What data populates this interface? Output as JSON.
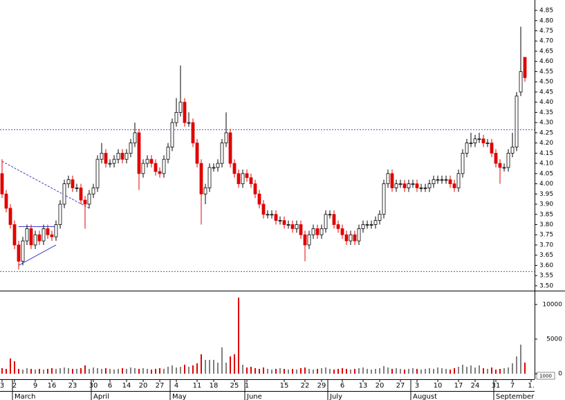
{
  "chart_data": {
    "type": "candlestick",
    "xlim": [
      -0.5,
      128.33
    ],
    "xticks": [
      {
        "value": 0,
        "label": "3"
      },
      {
        "value": 3,
        "label": "2"
      },
      {
        "value": 8,
        "label": "9"
      },
      {
        "value": 12,
        "label": "16"
      },
      {
        "value": 17,
        "label": "23"
      },
      {
        "value": 22,
        "label": "30"
      },
      {
        "value": 26,
        "label": "6"
      },
      {
        "value": 30,
        "label": "14"
      },
      {
        "value": 34,
        "label": "20"
      },
      {
        "value": 38,
        "label": "27"
      },
      {
        "value": 42,
        "label": "4"
      },
      {
        "value": 47,
        "label": "11"
      },
      {
        "value": 51,
        "label": "18"
      },
      {
        "value": 56,
        "label": "25"
      },
      {
        "value": 59,
        "label": "1"
      },
      {
        "value": 68,
        "label": "15"
      },
      {
        "value": 73,
        "label": "22"
      },
      {
        "value": 77,
        "label": "29"
      },
      {
        "value": 82,
        "label": "6"
      },
      {
        "value": 87,
        "label": "13"
      },
      {
        "value": 91,
        "label": "20"
      },
      {
        "value": 96,
        "label": "27"
      },
      {
        "value": 100,
        "label": "3"
      },
      {
        "value": 105,
        "label": "10"
      },
      {
        "value": 110,
        "label": "17"
      },
      {
        "value": 114,
        "label": "24"
      },
      {
        "value": 119,
        "label": "31"
      },
      {
        "value": 123,
        "label": "7"
      },
      {
        "value": 127.5,
        "label": "1."
      }
    ],
    "months": [
      {
        "value": 3,
        "label": "March"
      },
      {
        "value": 22,
        "label": "April"
      },
      {
        "value": 41,
        "label": "May"
      },
      {
        "value": 59,
        "label": "June"
      },
      {
        "value": 79,
        "label": "July"
      },
      {
        "value": 99,
        "label": "August"
      },
      {
        "value": 119,
        "label": "September"
      }
    ],
    "ylim": [
      3.476,
      4.901
    ],
    "yticks": [
      {
        "value": 3.5,
        "label": "3.50"
      },
      {
        "value": 3.55,
        "label": "3.55"
      },
      {
        "value": 3.6,
        "label": "3.60"
      },
      {
        "value": 3.65,
        "label": "3.65"
      },
      {
        "value": 3.7,
        "label": "3.70"
      },
      {
        "value": 3.75,
        "label": "3.75"
      },
      {
        "value": 3.8,
        "label": "3.80"
      },
      {
        "value": 3.85,
        "label": "3.85"
      },
      {
        "value": 3.9,
        "label": "3.90"
      },
      {
        "value": 3.95,
        "label": "3.95"
      },
      {
        "value": 4.0,
        "label": "4.00"
      },
      {
        "value": 4.05,
        "label": "4.05"
      },
      {
        "value": 4.1,
        "label": "4.10"
      },
      {
        "value": 4.15,
        "label": "4.15"
      },
      {
        "value": 4.2,
        "label": "4.20"
      },
      {
        "value": 4.25,
        "label": "4.25"
      },
      {
        "value": 4.3,
        "label": "4.30"
      },
      {
        "value": 4.35,
        "label": "4.35"
      },
      {
        "value": 4.4,
        "label": "4.40"
      },
      {
        "value": 4.45,
        "label": "4.45"
      },
      {
        "value": 4.5,
        "label": "4.50"
      },
      {
        "value": 4.55,
        "label": "4.55"
      },
      {
        "value": 4.6,
        "label": "4.60"
      },
      {
        "value": 4.65,
        "label": "4.65"
      },
      {
        "value": 4.7,
        "label": "4.70"
      },
      {
        "value": 4.75,
        "label": "4.75"
      },
      {
        "value": 4.8,
        "label": "4.80"
      },
      {
        "value": 4.85,
        "label": "4.85"
      }
    ],
    "volume_ylim": [
      -800,
      11900
    ],
    "volume_yticks": [
      0,
      5000,
      10000
    ],
    "volume_unit": "1000",
    "up_color": "#ffffff",
    "down_color": "#e00000",
    "up_volume_color": "#808080",
    "line_color": "#3a3acc",
    "hlines": [
      4.265,
      3.57
    ],
    "trendlines": [
      {
        "x": [
          0,
          21
        ],
        "y": [
          4.11,
          3.88
        ]
      },
      {
        "x": [
          4,
          13
        ],
        "y": [
          3.79,
          3.79
        ]
      },
      {
        "x": [
          4,
          13
        ],
        "y": [
          3.6,
          3.7
        ]
      }
    ],
    "open": [
      4.05,
      3.95,
      3.88,
      3.8,
      3.7,
      3.62,
      3.72,
      3.78,
      3.7,
      3.75,
      3.72,
      3.78,
      3.75,
      3.74,
      3.8,
      3.9,
      4.0,
      4.02,
      3.98,
      3.98,
      3.92,
      3.9,
      3.95,
      3.98,
      4.12,
      4.15,
      4.1,
      4.1,
      4.12,
      4.15,
      4.12,
      4.15,
      4.2,
      4.25,
      4.05,
      4.1,
      4.12,
      4.1,
      4.06,
      4.05,
      4.12,
      4.18,
      4.3,
      4.35,
      4.4,
      4.3,
      4.3,
      4.2,
      4.1,
      3.95,
      3.98,
      4.08,
      4.08,
      4.1,
      4.2,
      4.25,
      4.1,
      4.05,
      4.0,
      4.05,
      4.03,
      4.0,
      3.95,
      3.9,
      3.85,
      3.85,
      3.85,
      3.82,
      3.82,
      3.8,
      3.8,
      3.78,
      3.8,
      3.75,
      3.7,
      3.75,
      3.78,
      3.75,
      3.78,
      3.85,
      3.85,
      3.8,
      3.78,
      3.75,
      3.72,
      3.75,
      3.72,
      3.78,
      3.8,
      3.8,
      3.8,
      3.82,
      3.85,
      4.0,
      4.05,
      3.98,
      4.0,
      4.0,
      3.98,
      4.0,
      4.0,
      3.98,
      3.98,
      3.98,
      4.0,
      4.02,
      4.02,
      4.02,
      4.02,
      4.0,
      3.98,
      4.05,
      4.15,
      4.2,
      4.2,
      4.22,
      4.22,
      4.2,
      4.2,
      4.15,
      4.1,
      4.08,
      4.08,
      4.15,
      4.18,
      4.45,
      4.62
    ],
    "high": [
      4.12,
      3.97,
      3.9,
      3.82,
      3.72,
      3.74,
      3.8,
      3.8,
      3.77,
      3.77,
      3.8,
      3.8,
      3.77,
      3.82,
      3.92,
      4.02,
      4.04,
      4.04,
      4.0,
      4.0,
      3.94,
      3.97,
      4.0,
      4.14,
      4.2,
      4.17,
      4.12,
      4.14,
      4.17,
      4.17,
      4.17,
      4.22,
      4.3,
      4.27,
      4.12,
      4.14,
      4.14,
      4.12,
      4.08,
      4.14,
      4.2,
      4.32,
      4.42,
      4.58,
      4.42,
      4.35,
      4.32,
      4.22,
      4.12,
      4.0,
      4.1,
      4.1,
      4.12,
      4.22,
      4.35,
      4.27,
      4.12,
      4.07,
      4.07,
      4.07,
      4.05,
      4.02,
      3.97,
      3.92,
      3.87,
      3.87,
      3.87,
      3.84,
      3.84,
      3.82,
      3.82,
      3.82,
      3.82,
      3.77,
      3.77,
      3.8,
      3.8,
      3.8,
      3.87,
      3.87,
      3.87,
      3.82,
      3.8,
      3.77,
      3.77,
      3.77,
      3.8,
      3.82,
      3.82,
      3.82,
      3.84,
      3.87,
      4.02,
      4.07,
      4.07,
      4.02,
      4.02,
      4.02,
      4.02,
      4.02,
      4.02,
      4.0,
      4.0,
      4.02,
      4.04,
      4.04,
      4.04,
      4.04,
      4.04,
      4.02,
      4.07,
      4.17,
      4.22,
      4.25,
      4.24,
      4.25,
      4.24,
      4.22,
      4.22,
      4.17,
      4.12,
      4.1,
      4.17,
      4.25,
      4.45,
      4.77,
      4.62
    ],
    "low": [
      3.93,
      3.86,
      3.78,
      3.68,
      3.58,
      3.6,
      3.7,
      3.68,
      3.68,
      3.7,
      3.7,
      3.73,
      3.72,
      3.72,
      3.78,
      3.88,
      3.98,
      3.96,
      3.96,
      3.9,
      3.78,
      3.88,
      3.93,
      3.96,
      4.1,
      4.08,
      4.08,
      4.08,
      4.1,
      4.1,
      4.1,
      4.13,
      4.18,
      3.97,
      4.03,
      4.08,
      4.08,
      4.04,
      4.03,
      4.03,
      4.1,
      4.16,
      4.28,
      4.33,
      4.28,
      4.28,
      4.18,
      4.08,
      3.8,
      3.9,
      3.96,
      4.06,
      4.06,
      4.08,
      4.18,
      4.08,
      4.03,
      3.98,
      3.98,
      4.01,
      3.98,
      3.93,
      3.88,
      3.83,
      3.83,
      3.83,
      3.8,
      3.8,
      3.78,
      3.78,
      3.76,
      3.76,
      3.73,
      3.62,
      3.68,
      3.73,
      3.73,
      3.73,
      3.76,
      3.83,
      3.78,
      3.76,
      3.73,
      3.7,
      3.7,
      3.7,
      3.7,
      3.76,
      3.78,
      3.78,
      3.78,
      3.8,
      3.83,
      3.98,
      3.96,
      3.96,
      3.98,
      3.96,
      3.96,
      3.98,
      3.96,
      3.96,
      3.96,
      3.96,
      3.98,
      4.0,
      4.0,
      4.0,
      3.98,
      3.96,
      3.96,
      4.03,
      4.13,
      4.18,
      4.18,
      4.2,
      4.18,
      4.18,
      4.13,
      4.08,
      4.0,
      4.06,
      4.06,
      4.13,
      4.16,
      4.43,
      4.5
    ],
    "close": [
      3.95,
      3.88,
      3.8,
      3.7,
      3.62,
      3.72,
      3.78,
      3.7,
      3.75,
      3.72,
      3.78,
      3.75,
      3.74,
      3.8,
      3.9,
      4.0,
      4.02,
      3.98,
      3.98,
      3.92,
      3.9,
      3.95,
      3.98,
      4.12,
      4.15,
      4.1,
      4.1,
      4.12,
      4.15,
      4.12,
      4.15,
      4.2,
      4.25,
      4.05,
      4.1,
      4.12,
      4.1,
      4.06,
      4.05,
      4.12,
      4.18,
      4.3,
      4.35,
      4.4,
      4.3,
      4.3,
      4.2,
      4.1,
      3.95,
      3.98,
      4.08,
      4.08,
      4.1,
      4.2,
      4.25,
      4.1,
      4.05,
      4.0,
      4.05,
      4.03,
      4.0,
      3.95,
      3.9,
      3.85,
      3.85,
      3.85,
      3.82,
      3.82,
      3.8,
      3.8,
      3.78,
      3.8,
      3.75,
      3.7,
      3.75,
      3.78,
      3.75,
      3.78,
      3.85,
      3.85,
      3.8,
      3.78,
      3.75,
      3.72,
      3.75,
      3.72,
      3.78,
      3.8,
      3.8,
      3.8,
      3.82,
      3.85,
      4.0,
      4.05,
      3.98,
      4.0,
      4.0,
      3.98,
      4.0,
      4.0,
      3.98,
      3.98,
      3.98,
      4.0,
      4.02,
      4.02,
      4.02,
      4.02,
      4.0,
      3.98,
      4.05,
      4.15,
      4.2,
      4.2,
      4.22,
      4.22,
      4.2,
      4.2,
      4.15,
      4.1,
      4.08,
      4.08,
      4.15,
      4.18,
      4.43,
      4.55,
      4.52
    ],
    "volume": [
      800,
      700,
      2200,
      1800,
      700,
      600,
      800,
      700,
      600,
      700,
      600,
      700,
      800,
      700,
      800,
      900,
      800,
      700,
      700,
      800,
      1200,
      700,
      900,
      800,
      700,
      800,
      700,
      600,
      700,
      800,
      700,
      900,
      800,
      700,
      800,
      700,
      600,
      700,
      800,
      700,
      1000,
      1200,
      900,
      1000,
      1300,
      1000,
      1200,
      1500,
      2800,
      2000,
      2000,
      2000,
      1600,
      3800,
      1600,
      2500,
      2800,
      11000,
      1300,
      900,
      1000,
      800,
      700,
      900,
      700,
      600,
      700,
      800,
      700,
      600,
      700,
      600,
      800,
      900,
      700,
      600,
      700,
      800,
      900,
      700,
      600,
      700,
      800,
      700,
      600,
      700,
      800,
      900,
      700,
      600,
      700,
      800,
      1100,
      900,
      700,
      800,
      700,
      600,
      700,
      800,
      700,
      600,
      700,
      800,
      700,
      900,
      800,
      700,
      600,
      800,
      1000,
      1300,
      1000,
      1200,
      900,
      1200,
      800,
      700,
      900,
      600,
      700,
      800,
      900,
      1500,
      2500,
      4200,
      1600
    ]
  }
}
